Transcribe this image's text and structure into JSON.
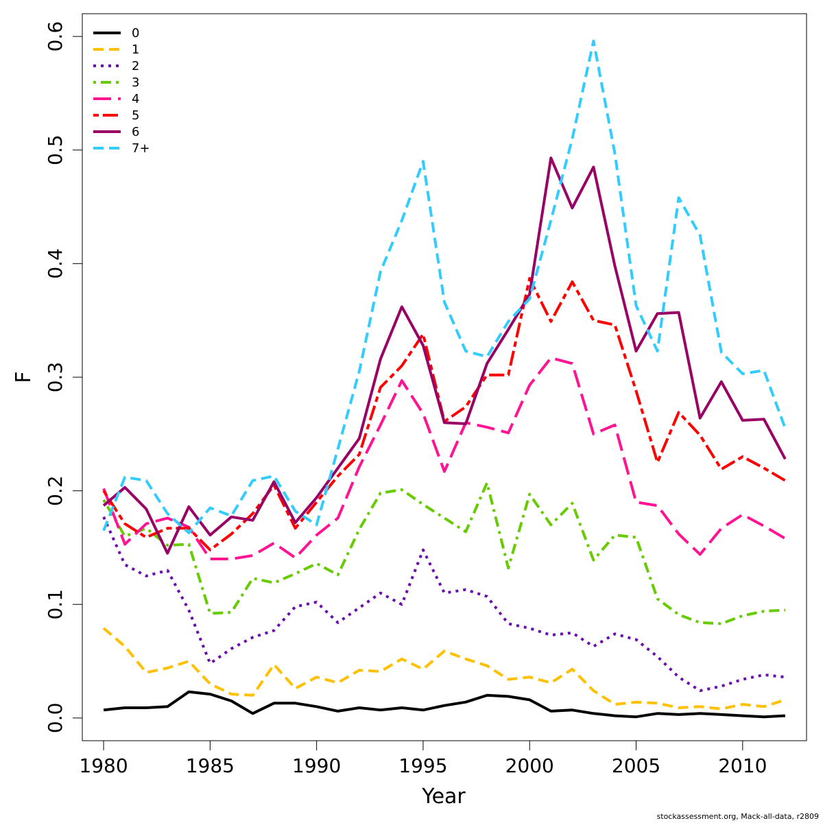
{
  "chart_data": {
    "type": "line",
    "title": "",
    "xlabel": "Year",
    "ylabel": "F",
    "xlim": [
      1979,
      2013
    ],
    "ylim": [
      -0.02,
      0.62
    ],
    "x_ticks": [
      1980,
      1985,
      1990,
      1995,
      2000,
      2005,
      2010
    ],
    "y_ticks": [
      0.0,
      0.1,
      0.2,
      0.3,
      0.4,
      0.5,
      0.6
    ],
    "y_tick_labels": [
      "0.0",
      "0.1",
      "0.2",
      "0.3",
      "0.4",
      "0.5",
      "0.6"
    ],
    "grid": false,
    "legend_position": "top-left",
    "x": [
      1980,
      1981,
      1982,
      1983,
      1984,
      1985,
      1986,
      1987,
      1988,
      1989,
      1990,
      1991,
      1992,
      1993,
      1994,
      1995,
      1996,
      1997,
      1998,
      1999,
      2000,
      2001,
      2002,
      2003,
      2004,
      2005,
      2006,
      2007,
      2008,
      2009,
      2010,
      2011,
      2012
    ],
    "series": [
      {
        "name": "0",
        "color": "#000000",
        "dash": "solid",
        "values": [
          0.007,
          0.009,
          0.009,
          0.01,
          0.023,
          0.021,
          0.015,
          0.004,
          0.013,
          0.013,
          0.01,
          0.006,
          0.009,
          0.007,
          0.009,
          0.007,
          0.011,
          0.014,
          0.02,
          0.019,
          0.016,
          0.006,
          0.007,
          0.004,
          0.002,
          0.001,
          0.004,
          0.003,
          0.004,
          0.003,
          0.002,
          0.001,
          0.002
        ]
      },
      {
        "name": "1",
        "color": "#FFC000",
        "dash": "dashed",
        "values": [
          0.079,
          0.063,
          0.04,
          0.044,
          0.05,
          0.03,
          0.021,
          0.02,
          0.047,
          0.026,
          0.036,
          0.031,
          0.042,
          0.041,
          0.052,
          0.043,
          0.059,
          0.052,
          0.046,
          0.034,
          0.036,
          0.031,
          0.043,
          0.024,
          0.012,
          0.014,
          0.013,
          0.009,
          0.01,
          0.008,
          0.012,
          0.01,
          0.016
        ]
      },
      {
        "name": "2",
        "color": "#6A0DAD",
        "dash": "dotted",
        "values": [
          0.177,
          0.135,
          0.125,
          0.13,
          0.095,
          0.048,
          0.061,
          0.071,
          0.077,
          0.098,
          0.102,
          0.084,
          0.097,
          0.11,
          0.1,
          0.148,
          0.11,
          0.113,
          0.107,
          0.083,
          0.079,
          0.073,
          0.075,
          0.063,
          0.074,
          0.069,
          0.054,
          0.036,
          0.024,
          0.028,
          0.034,
          0.038,
          0.036
        ]
      },
      {
        "name": "3",
        "color": "#66CC00",
        "dash": "dotdash",
        "values": [
          0.192,
          0.16,
          0.167,
          0.152,
          0.153,
          0.092,
          0.093,
          0.123,
          0.119,
          0.127,
          0.136,
          0.126,
          0.166,
          0.198,
          0.201,
          0.188,
          0.176,
          0.164,
          0.207,
          0.132,
          0.197,
          0.17,
          0.189,
          0.139,
          0.161,
          0.159,
          0.105,
          0.091,
          0.084,
          0.083,
          0.09,
          0.094,
          0.095
        ]
      },
      {
        "name": "4",
        "color": "#FF1493",
        "dash": "longdash",
        "values": [
          0.202,
          0.153,
          0.171,
          0.176,
          0.168,
          0.14,
          0.14,
          0.143,
          0.154,
          0.141,
          0.161,
          0.176,
          0.221,
          0.258,
          0.297,
          0.268,
          0.217,
          0.26,
          0.256,
          0.251,
          0.293,
          0.317,
          0.312,
          0.25,
          0.258,
          0.19,
          0.187,
          0.162,
          0.144,
          0.167,
          0.179,
          0.169,
          0.158
        ]
      },
      {
        "name": "5",
        "color": "#FF0000",
        "dash": "twodash",
        "values": [
          0.2,
          0.171,
          0.159,
          0.167,
          0.167,
          0.148,
          0.162,
          0.18,
          0.205,
          0.167,
          0.19,
          0.213,
          0.232,
          0.291,
          0.31,
          0.338,
          0.261,
          0.274,
          0.302,
          0.302,
          0.387,
          0.349,
          0.384,
          0.35,
          0.346,
          0.288,
          0.225,
          0.269,
          0.249,
          0.219,
          0.23,
          0.22,
          0.209
        ]
      },
      {
        "name": "6",
        "color": "#990066",
        "dash": "solid",
        "values": [
          0.187,
          0.203,
          0.184,
          0.145,
          0.186,
          0.161,
          0.177,
          0.174,
          0.208,
          0.172,
          0.194,
          0.22,
          0.246,
          0.316,
          0.362,
          0.328,
          0.26,
          0.259,
          0.312,
          0.342,
          0.373,
          0.493,
          0.449,
          0.485,
          0.398,
          0.323,
          0.356,
          0.357,
          0.264,
          0.296,
          0.262,
          0.263,
          0.228
        ]
      },
      {
        "name": "7+",
        "color": "#33CCFF",
        "dash": "dashed",
        "values": [
          0.165,
          0.212,
          0.209,
          0.18,
          0.163,
          0.185,
          0.178,
          0.209,
          0.213,
          0.182,
          0.17,
          0.237,
          0.305,
          0.393,
          0.438,
          0.49,
          0.366,
          0.323,
          0.318,
          0.349,
          0.369,
          0.438,
          0.51,
          0.596,
          0.497,
          0.363,
          0.323,
          0.458,
          0.425,
          0.322,
          0.303,
          0.306,
          0.255
        ]
      }
    ]
  },
  "footer": "stockassessment.org, Mack-all-data, r2809"
}
